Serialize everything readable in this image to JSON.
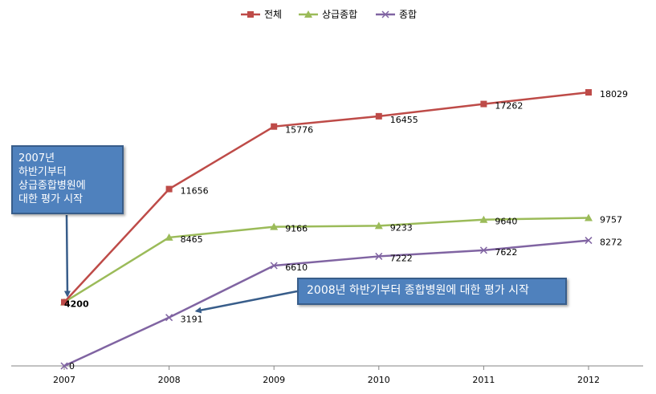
{
  "chart_data": {
    "type": "line",
    "categories": [
      "2007",
      "2008",
      "2009",
      "2010",
      "2011",
      "2012"
    ],
    "series": [
      {
        "name": "전체",
        "values": [
          4200,
          11656,
          15776,
          16455,
          17262,
          18029
        ],
        "color": "#be4b48",
        "marker": "square",
        "labels": [
          "4200",
          "11656",
          "15776",
          "16455",
          "17262",
          "18029"
        ]
      },
      {
        "name": "상급종합",
        "values": [
          4200,
          8465,
          9166,
          9233,
          9640,
          9757
        ],
        "color": "#9bbb59",
        "marker": "triangle",
        "labels": [
          "",
          "8465",
          "9166",
          "9233",
          "9640",
          "9757"
        ]
      },
      {
        "name": "종합",
        "values": [
          0,
          3191,
          6610,
          7222,
          7622,
          8272
        ],
        "color": "#8064a2",
        "marker": "x",
        "labels": [
          "0",
          "3191",
          "6610",
          "7222",
          "7622",
          "8272"
        ]
      }
    ],
    "ylim": [
      0,
      22000
    ],
    "grid": false,
    "legend": "top-center",
    "annotations": [
      {
        "id": "2007",
        "lines": [
          "2007년",
          "하반기부터",
          "상급종합병원에",
          "대한 평가 시작"
        ],
        "target_series": 1,
        "target_index": 0
      },
      {
        "id": "2008",
        "lines": [
          "2008년 하반기부터 종합병원에 대한 평가 시작"
        ],
        "target_series": 2,
        "target_index": 1
      }
    ],
    "callout_color": "#4f81bd",
    "arrow_color": "#385d8a"
  }
}
